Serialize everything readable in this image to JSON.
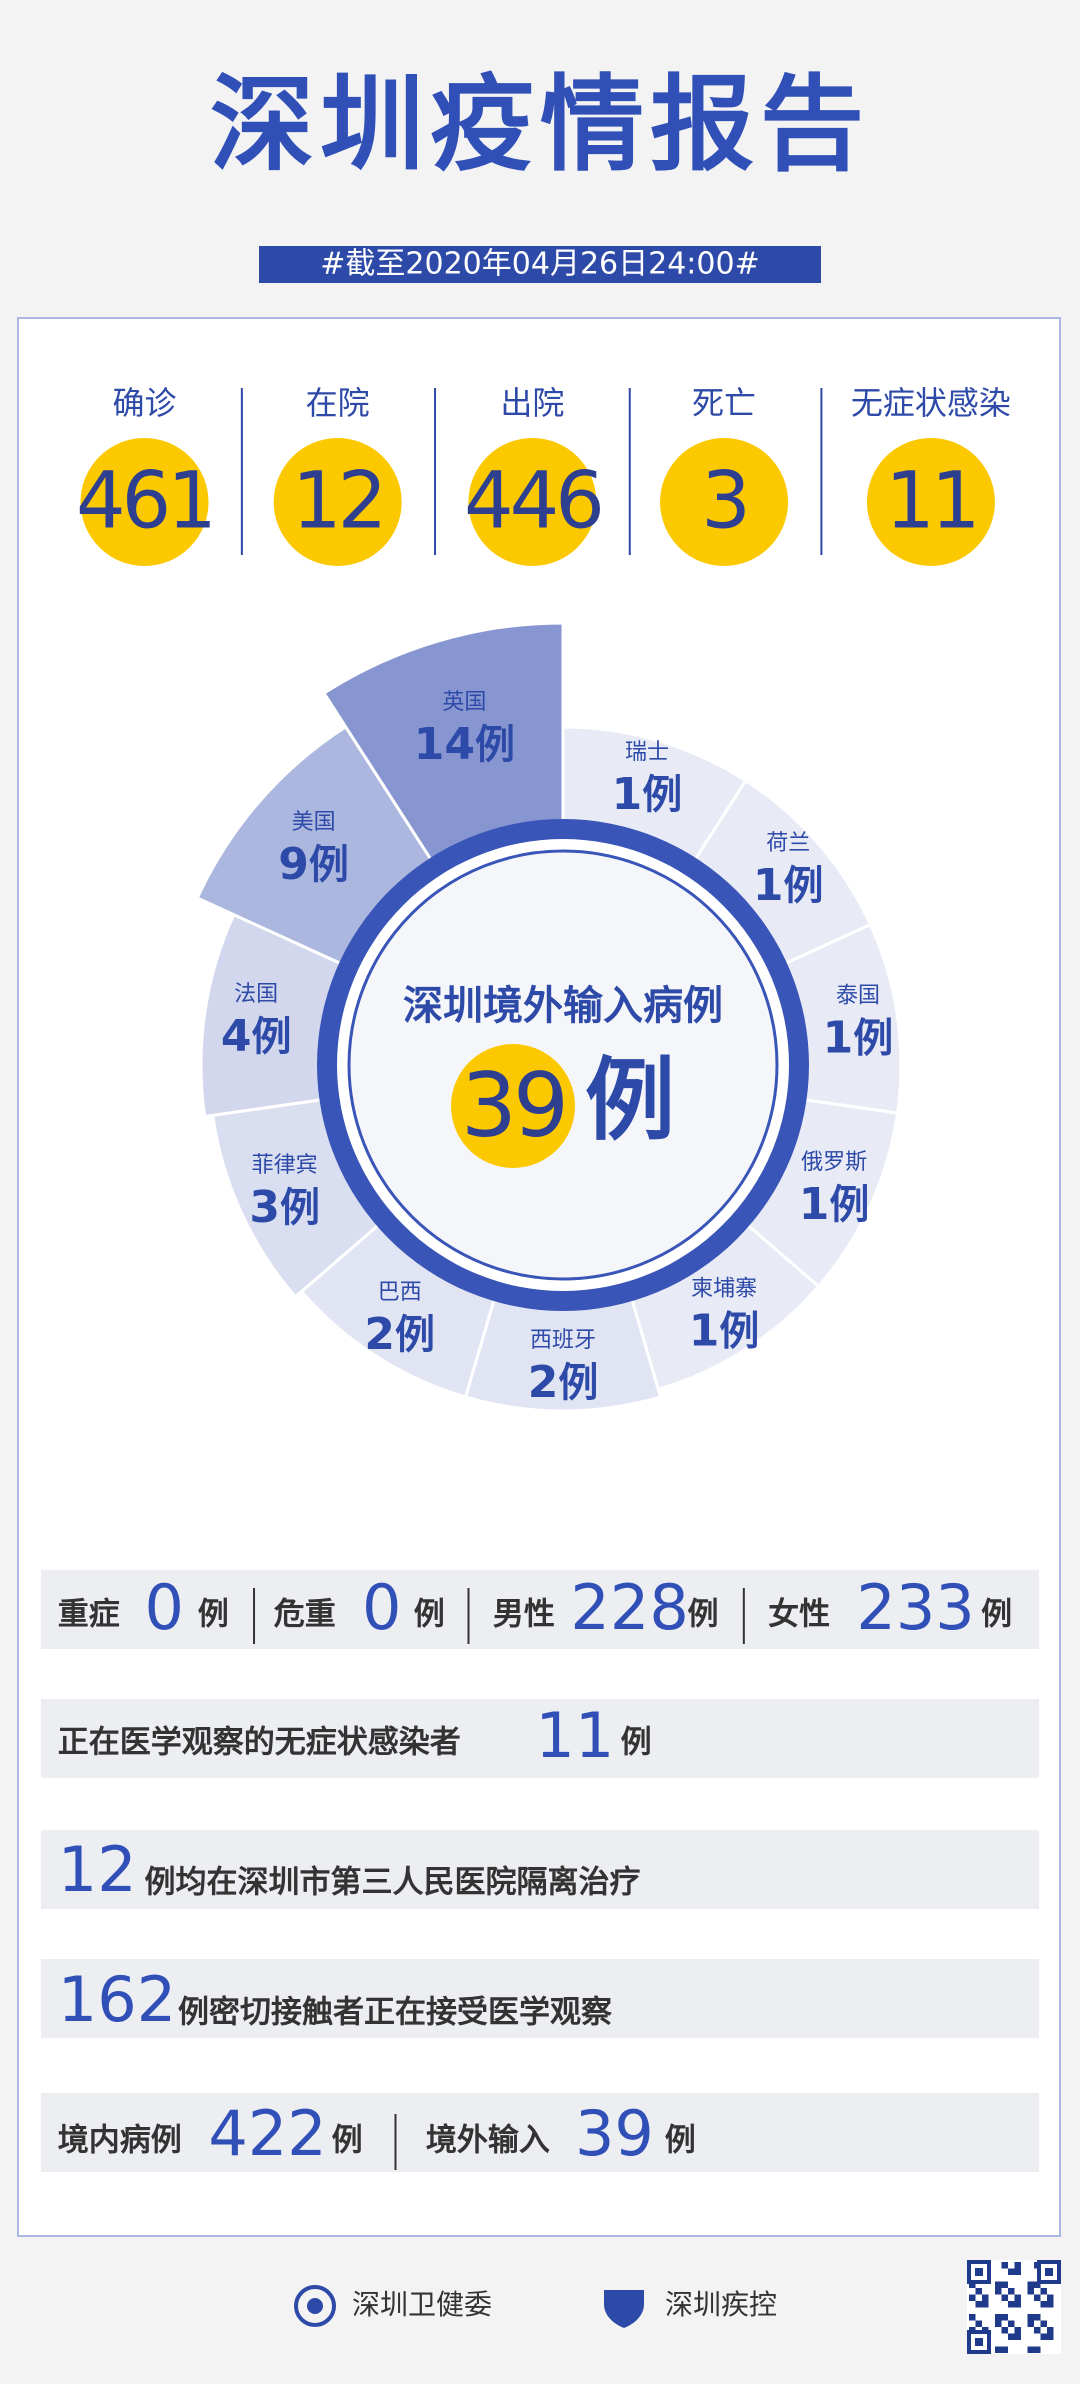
{
  "header": {
    "title": "深圳疫情报告",
    "date_tag": "#截至2020年04月26日24:00#"
  },
  "stats": [
    {
      "label": "确诊",
      "value": 461
    },
    {
      "label": "在院",
      "value": 12
    },
    {
      "label": "出院",
      "value": 446
    },
    {
      "label": "死亡",
      "value": 3
    },
    {
      "label": "无症状感染",
      "value": 11
    }
  ],
  "imported": {
    "title": "深圳境外输入病例",
    "total": 39,
    "unit": "例",
    "countries": [
      {
        "name": "瑞士",
        "value": 1
      },
      {
        "name": "荷兰",
        "value": 1
      },
      {
        "name": "泰国",
        "value": 1
      },
      {
        "name": "俄罗斯",
        "value": 1
      },
      {
        "name": "柬埔寨",
        "value": 1
      },
      {
        "name": "西班牙",
        "value": 2
      },
      {
        "name": "巴西",
        "value": 2
      },
      {
        "name": "菲律宾",
        "value": 3
      },
      {
        "name": "法国",
        "value": 4
      },
      {
        "name": "美国",
        "value": 9
      },
      {
        "name": "英国",
        "value": 14
      }
    ]
  },
  "details": {
    "severity": [
      {
        "label": "重症",
        "value": 0
      },
      {
        "label": "危重",
        "value": 0
      },
      {
        "label": "男性",
        "value": 228
      },
      {
        "label": "女性",
        "value": 233
      }
    ],
    "observing": {
      "text": "正在医学观察的无症状感染者",
      "value": 11
    },
    "hospital": {
      "value": 12,
      "text": "例均在深圳市第三人民医院隔离治疗"
    },
    "contacts": {
      "value": 162,
      "text": "例密切接触者正在接受医学观察"
    },
    "source": [
      {
        "label": "境内病例",
        "value": 422
      },
      {
        "label": "境外输入",
        "value": 39
      }
    ]
  },
  "footer": {
    "org1": "深圳卫健委",
    "org2": "深圳疾控"
  }
}
